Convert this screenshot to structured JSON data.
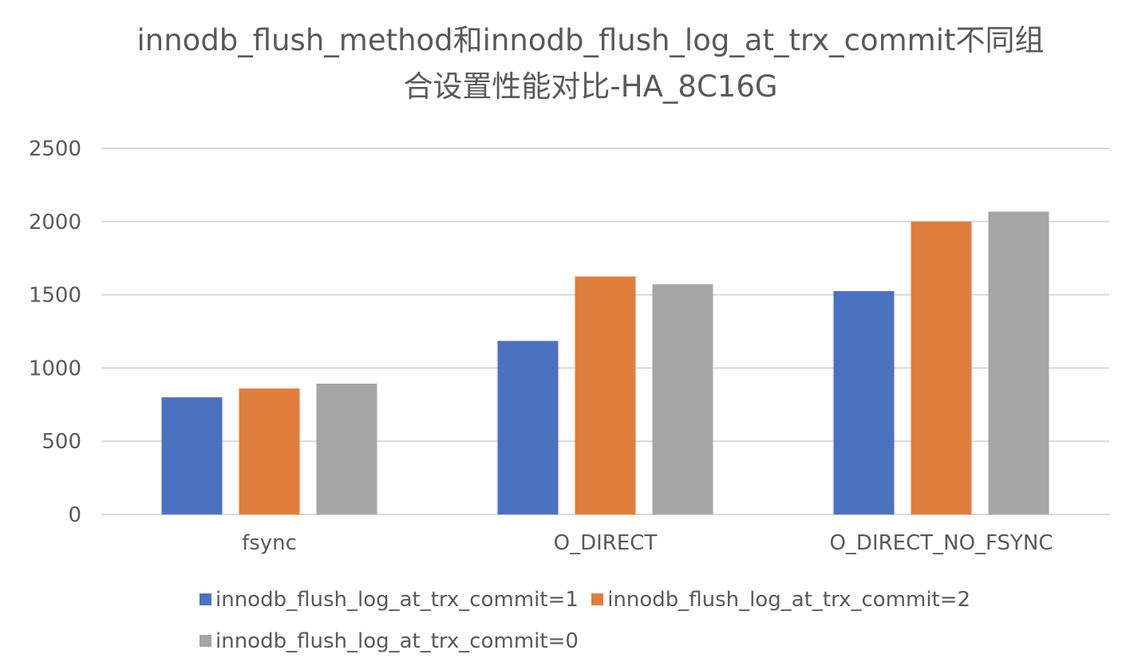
{
  "chart_data": {
    "type": "bar",
    "title": "innodb_flush_method和innodb_flush_log_at_trx_commit不同组合设置性能对比-HA_8C16G",
    "title_lines": [
      "innodb_flush_method和innodb_flush_log_at_trx_commit不同组",
      "合设置性能对比-HA_8C16G"
    ],
    "categories": [
      "fsync",
      "O_DIRECT",
      "O_DIRECT_NO_FSYNC"
    ],
    "series": [
      {
        "name": "innodb_flush_log_at_trx_commit=1",
        "color": "#4A72C0",
        "values": [
          800,
          1185,
          1525
        ]
      },
      {
        "name": "innodb_flush_log_at_trx_commit=2",
        "color": "#E07E3C",
        "values": [
          860,
          1625,
          2000
        ]
      },
      {
        "name": "innodb_flush_log_at_trx_commit=0",
        "color": "#A5A5A5",
        "values": [
          893,
          1572,
          2068
        ]
      }
    ],
    "ylim": [
      0,
      2500
    ],
    "yticks": [
      0,
      500,
      1000,
      1500,
      2000,
      2500
    ],
    "xlabel": "",
    "ylabel": "",
    "grid": true,
    "gridline_color": "#D9D9D9",
    "legend_position": "bottom"
  }
}
